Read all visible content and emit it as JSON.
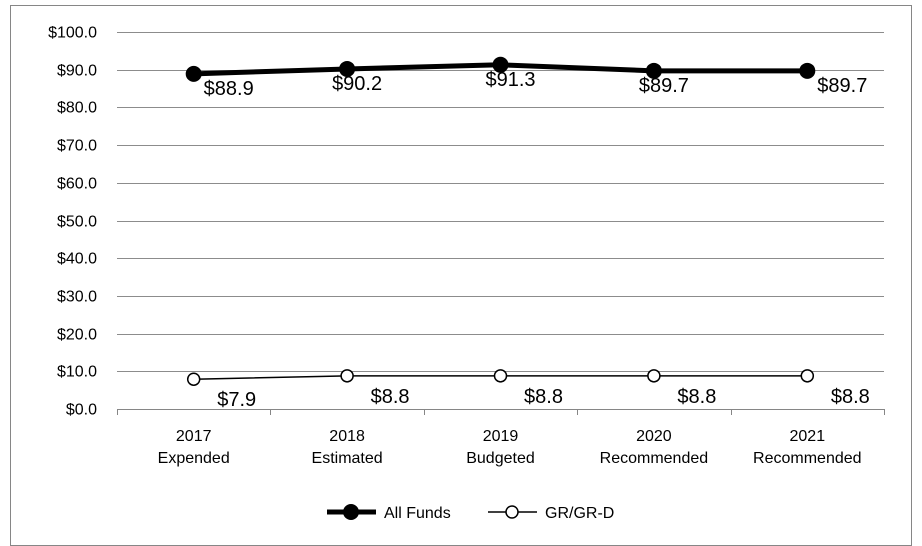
{
  "chart_data": {
    "type": "line",
    "title": "",
    "xlabel": "",
    "ylabel": "",
    "categories": [
      [
        "2017",
        "Expended"
      ],
      [
        "2018",
        "Estimated"
      ],
      [
        "2019",
        "Budgeted"
      ],
      [
        "2020",
        "Recommended"
      ],
      [
        "2021",
        "Recommended"
      ]
    ],
    "ylim": [
      0,
      100
    ],
    "ytick_values": [
      0,
      10,
      20,
      30,
      40,
      50,
      60,
      70,
      80,
      90,
      100
    ],
    "ytick_labels": [
      "$0.0",
      "$10.0",
      "$20.0",
      "$30.0",
      "$40.0",
      "$50.0",
      "$60.0",
      "$70.0",
      "$80.0",
      "$90.0",
      "$100.0"
    ],
    "grid": true,
    "legend_position": "bottom",
    "series": [
      {
        "name": "All Funds",
        "values": [
          88.9,
          90.2,
          91.3,
          89.7,
          89.7
        ],
        "labels": [
          "$88.9",
          "$90.2",
          "$91.3",
          "$89.7",
          "$89.7"
        ],
        "marker": "filled-circle",
        "color": "#000000"
      },
      {
        "name": "GR/GR-D",
        "values": [
          7.9,
          8.8,
          8.8,
          8.8,
          8.8
        ],
        "labels": [
          "$7.9",
          "$8.8",
          "$8.8",
          "$8.8",
          "$8.8"
        ],
        "marker": "open-circle",
        "color": "#000000"
      }
    ]
  }
}
